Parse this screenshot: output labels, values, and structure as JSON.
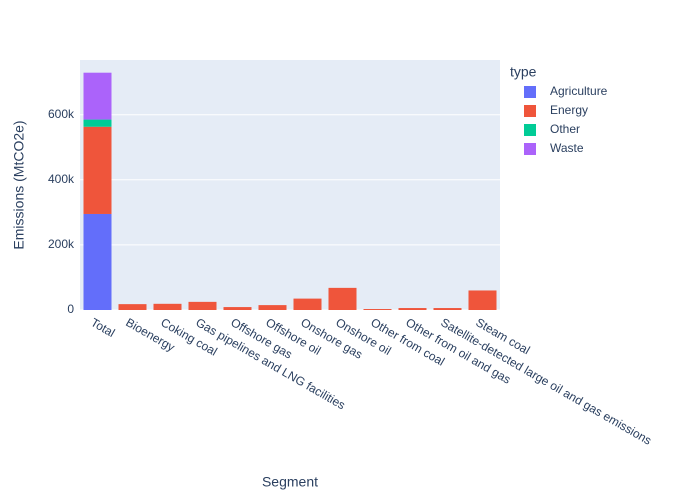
{
  "chart_data": {
    "type": "bar",
    "stacked": true,
    "x_label": "Segment",
    "y_label": "Emissions (MtCO2e)",
    "legend_title": "type",
    "categories": [
      "Total",
      "Bioenergy",
      "Coking coal",
      "Gas pipelines and LNG facilities",
      "Offshore gas",
      "Offshore oil",
      "Onshore gas",
      "Onshore oil",
      "Other from coal",
      "Other from oil and gas",
      "Satellite-detected large oil and gas emissions",
      "Steam coal"
    ],
    "series": [
      {
        "name": "Agriculture",
        "color": "#636efa",
        "values": [
          295000,
          null,
          null,
          null,
          null,
          null,
          null,
          null,
          null,
          null,
          null,
          null
        ]
      },
      {
        "name": "Energy",
        "color": "#EF553B",
        "values": [
          268000,
          18000,
          19000,
          25000,
          9000,
          15000,
          35000,
          68000,
          3000,
          6000,
          6000,
          60000
        ]
      },
      {
        "name": "Other",
        "color": "#00cc96",
        "values": [
          22000,
          null,
          null,
          null,
          null,
          null,
          null,
          null,
          null,
          null,
          null,
          null
        ]
      },
      {
        "name": "Waste",
        "color": "#ab63fa",
        "values": [
          144000,
          null,
          null,
          null,
          null,
          null,
          null,
          null,
          null,
          null,
          null,
          null
        ]
      }
    ],
    "ylim": [
      0,
      768000
    ],
    "yticks": [
      0,
      {
        "value": 200000,
        "label": "200k"
      },
      {
        "value": 400000,
        "label": "400k"
      },
      {
        "value": 600000,
        "label": "600k"
      }
    ],
    "grid": true,
    "legend_position": "right",
    "background": "#e5ecf6"
  }
}
